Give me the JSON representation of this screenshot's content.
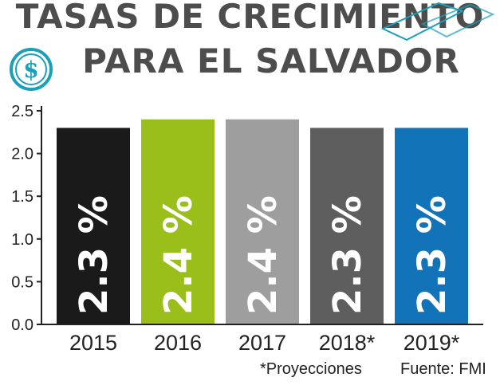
{
  "title_line1": "TASAS DE CRECIMIENTO",
  "title_line2": "PARA EL SALVADOR",
  "note": "*Proyecciones",
  "source": "Fuente: FMI",
  "chart_data": {
    "type": "bar",
    "title": "TASAS DE CRECIMIENTO PARA EL SALVADOR",
    "categories": [
      "2015",
      "2016",
      "2017",
      "2018*",
      "2019*"
    ],
    "values": [
      2.3,
      2.4,
      2.4,
      2.3,
      2.3
    ],
    "labels": [
      "2.3 %",
      "2.4 %",
      "2.4 %",
      "2.3 %",
      "2.3 %"
    ],
    "colors": [
      "#1a1a1a",
      "#9bbf1a",
      "#9e9e9e",
      "#5e5e5e",
      "#1273b8"
    ],
    "ylim": [
      0,
      2.5
    ],
    "yticks": [
      "0.0",
      "0.5",
      "1.0",
      "1.5",
      "2.0",
      "2.5"
    ],
    "xlabel": "",
    "ylabel": "",
    "grid": false,
    "legend": "none"
  }
}
